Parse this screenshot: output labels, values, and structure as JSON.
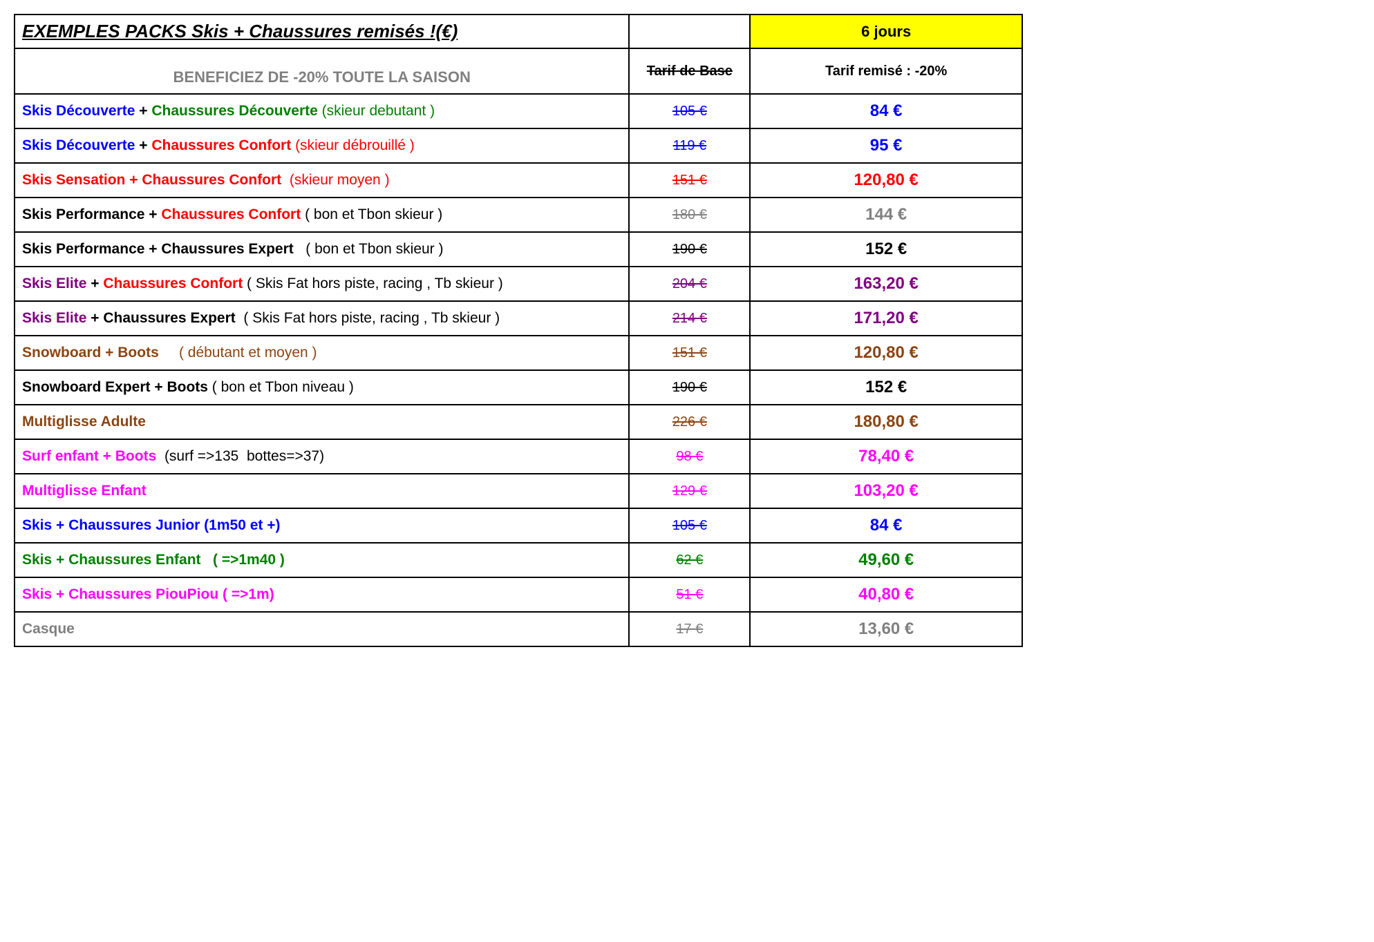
{
  "colors": {
    "blue": "#0000ff",
    "green": "#008000",
    "red": "#ff0000",
    "black": "#000000",
    "gray": "#808080",
    "purple": "#800080",
    "brown": "#8b4513",
    "magenta": "#ff00ff",
    "yellow_bg": "#ffff00"
  },
  "header": {
    "title": "EXEMPLES PACKS Skis + Chaussures remisés !(€)",
    "period_label": "6 jours",
    "subtitle": "BENEFICIEZ DE -20% TOUTE LA SAISON",
    "base_price_label": "Tarif de Base",
    "discount_label": "Tarif remisé : -20%"
  },
  "rows": [
    {
      "segments": [
        {
          "text": "Skis Découverte",
          "color": "blue"
        },
        {
          "text": " + ",
          "color": "black"
        },
        {
          "text": "Chaussures Découverte ",
          "color": "green"
        },
        {
          "text": "(skieur debutant )",
          "color": "green",
          "weight": "normal"
        }
      ],
      "base": "105 €",
      "base_color": "blue",
      "disc": "84 €",
      "disc_color": "blue"
    },
    {
      "segments": [
        {
          "text": "Skis Découverte",
          "color": "blue"
        },
        {
          "text": " + ",
          "color": "black"
        },
        {
          "text": "Chaussures Confort ",
          "color": "red"
        },
        {
          "text": "(skieur débrouillé )",
          "color": "red",
          "weight": "normal"
        }
      ],
      "base": "119 €",
      "base_color": "blue",
      "disc": "95 €",
      "disc_color": "blue"
    },
    {
      "segments": [
        {
          "text": "Skis Sensation + Chaussures Confort  ",
          "color": "red"
        },
        {
          "text": "(skieur moyen )",
          "color": "red",
          "weight": "normal"
        }
      ],
      "base": "151 €",
      "base_color": "red",
      "disc": "120,80 €",
      "disc_color": "red"
    },
    {
      "segments": [
        {
          "text": "Skis Performance + ",
          "color": "black"
        },
        {
          "text": "Chaussures Confort ",
          "color": "red"
        },
        {
          "text": "( bon et Tbon skieur )",
          "color": "black",
          "weight": "normal"
        }
      ],
      "base": "180 €",
      "base_color": "gray",
      "disc": "144 €",
      "disc_color": "gray"
    },
    {
      "segments": [
        {
          "text": "Skis Performance + Chaussures Expert   ",
          "color": "black"
        },
        {
          "text": "( bon et Tbon skieur )",
          "color": "black",
          "weight": "normal"
        }
      ],
      "base": "190 €",
      "base_color": "black",
      "disc": "152 €",
      "disc_color": "black"
    },
    {
      "segments": [
        {
          "text": "Skis Elite",
          "color": "purple"
        },
        {
          "text": " + ",
          "color": "black"
        },
        {
          "text": "Chaussures Confort ",
          "color": "red"
        },
        {
          "text": "( Skis Fat hors piste, racing , Tb skieur )",
          "color": "black",
          "weight": "normal"
        }
      ],
      "base": "204 €",
      "base_color": "purple",
      "disc": "163,20 €",
      "disc_color": "purple"
    },
    {
      "segments": [
        {
          "text": "Skis Elite",
          "color": "purple"
        },
        {
          "text": " + ",
          "color": "black"
        },
        {
          "text": "Chaussures Expert  ",
          "color": "black"
        },
        {
          "text": "( Skis Fat hors piste, racing , Tb skieur )",
          "color": "black",
          "weight": "normal"
        }
      ],
      "base": "214 €",
      "base_color": "purple",
      "disc": "171,20 €",
      "disc_color": "purple"
    },
    {
      "segments": [
        {
          "text": "Snowboard + Boots     ",
          "color": "brown"
        },
        {
          "text": "( débutant et moyen )",
          "color": "brown",
          "weight": "normal"
        }
      ],
      "base": "151 €",
      "base_color": "brown",
      "disc": "120,80 €",
      "disc_color": "brown"
    },
    {
      "segments": [
        {
          "text": "Snowboard Expert + Boots ",
          "color": "black"
        },
        {
          "text": "( bon et Tbon niveau )",
          "color": "black",
          "weight": "normal"
        }
      ],
      "base": "190 €",
      "base_color": "black",
      "disc": "152 €",
      "disc_color": "black"
    },
    {
      "segments": [
        {
          "text": "Multiglisse Adulte",
          "color": "brown"
        }
      ],
      "base": "226 €",
      "base_color": "brown",
      "disc": "180,80 €",
      "disc_color": "brown"
    },
    {
      "segments": [
        {
          "text": "Surf enfant + Boots  ",
          "color": "magenta"
        },
        {
          "text": "(surf =>135  bottes=>37)",
          "color": "black",
          "weight": "normal"
        }
      ],
      "base": "98 €",
      "base_color": "magenta",
      "disc": "78,40 €",
      "disc_color": "magenta"
    },
    {
      "segments": [
        {
          "text": "Multiglisse Enfant",
          "color": "magenta"
        }
      ],
      "base": "129 €",
      "base_color": "magenta",
      "disc": "103,20 €",
      "disc_color": "magenta"
    },
    {
      "segments": [
        {
          "text": "Skis + Chaussures Junior (1m50 et +)",
          "color": "blue"
        }
      ],
      "base": "105 €",
      "base_color": "blue",
      "disc": "84 €",
      "disc_color": "blue"
    },
    {
      "segments": [
        {
          "text": "Skis + Chaussures Enfant   ( =>1m40 )",
          "color": "green"
        }
      ],
      "base": "62 €",
      "base_color": "green",
      "disc": "49,60 €",
      "disc_color": "green"
    },
    {
      "segments": [
        {
          "text": "Skis + Chaussures PiouPiou ( =>1m)",
          "color": "magenta"
        }
      ],
      "base": "51 €",
      "base_color": "magenta",
      "disc": "40,80 €",
      "disc_color": "magenta"
    },
    {
      "segments": [
        {
          "text": "Casque",
          "color": "gray"
        }
      ],
      "base": "17 €",
      "base_color": "gray",
      "disc": "13,60 €",
      "disc_color": "gray"
    }
  ]
}
